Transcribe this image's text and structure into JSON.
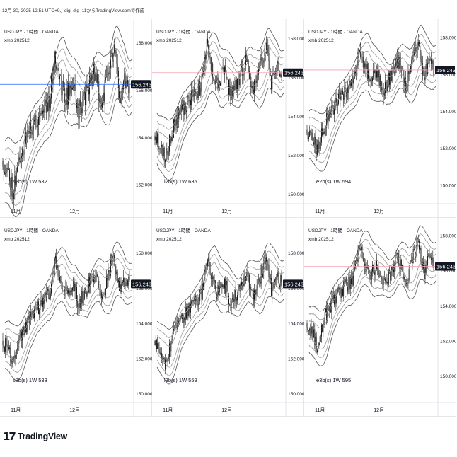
{
  "header": {
    "text": "12月 30, 2025 12:51 UTC+9、dig_dig_11からTradingView.comで作成"
  },
  "footer": {
    "logo_mark": "17",
    "logo_text": "TradingView"
  },
  "chart_data": [
    {
      "type": "line",
      "title": "USDJPY · 1時間 · OANDA",
      "subtitle": "xmb 202512",
      "indicator": "s2b(s)  1W  532",
      "yticks": [
        152.0,
        154.0,
        156.0,
        158.0
      ],
      "ylim": [
        151.2,
        159.0
      ],
      "xticks": [
        "11月",
        "12月"
      ],
      "last_price": "156.243",
      "last_value": 156.243,
      "price_line_color": "#2962ff",
      "seed": 11
    },
    {
      "type": "line",
      "title": "USDJPY · 1時間 · OANDA",
      "subtitle": "xmb 202512",
      "indicator": "l2b(s)  1W  635",
      "yticks": [
        150.0,
        152.0,
        154.0,
        156.0,
        158.0
      ],
      "ylim": [
        149.5,
        159.0
      ],
      "xticks": [
        "11月",
        "12月"
      ],
      "last_price": "156.243",
      "last_value": 156.243,
      "price_line_color": "#f5a3b5",
      "seed": 23
    },
    {
      "type": "line",
      "title": "USDJPY · 1時間 · OANDA",
      "subtitle": "xmb 202512",
      "indicator": "e2b(s)  1W  594",
      "yticks": [
        150.0,
        152.0,
        154.0,
        156.0,
        158.0
      ],
      "ylim": [
        149.0,
        159.0
      ],
      "xticks": [
        "11月",
        "12月"
      ],
      "last_price": "156.243",
      "last_value": 156.243,
      "price_line_color": "#f5a3b5",
      "seed": 37
    },
    {
      "type": "line",
      "title": "USDJPY · 1時間 · OANDA",
      "subtitle": "xmb 202512",
      "indicator": "s3b(s)  1W  533",
      "yticks": [
        150.0,
        152.0,
        154.0,
        156.0,
        158.0
      ],
      "ylim": [
        149.5,
        160.0
      ],
      "xticks": [
        "11月",
        "12月"
      ],
      "last_price": "156.243",
      "last_value": 156.243,
      "price_line_color": "#2962ff",
      "seed": 41
    },
    {
      "type": "line",
      "title": "USDJPY · 1時間 · OANDA",
      "subtitle": "xmb 202512",
      "indicator": "l3b(s)  1W  559",
      "yticks": [
        150.0,
        152.0,
        154.0,
        156.0,
        158.0
      ],
      "ylim": [
        149.5,
        160.0
      ],
      "xticks": [
        "11月",
        "12月"
      ],
      "last_price": "156.243",
      "last_value": 156.243,
      "price_line_color": "#f5a3b5",
      "seed": 53
    },
    {
      "type": "line",
      "title": "USDJPY · 1時間 · OANDA",
      "subtitle": "xmb 202512",
      "indicator": "e3b(s)  1W  595",
      "yticks": [
        150.0,
        152.0,
        154.0,
        156.0,
        158.0
      ],
      "ylim": [
        148.5,
        159.0
      ],
      "xticks": [
        "11月",
        "12月"
      ],
      "last_price": "156.243",
      "last_value": 156.243,
      "price_line_color": "#f5a3b5",
      "seed": 67
    }
  ]
}
